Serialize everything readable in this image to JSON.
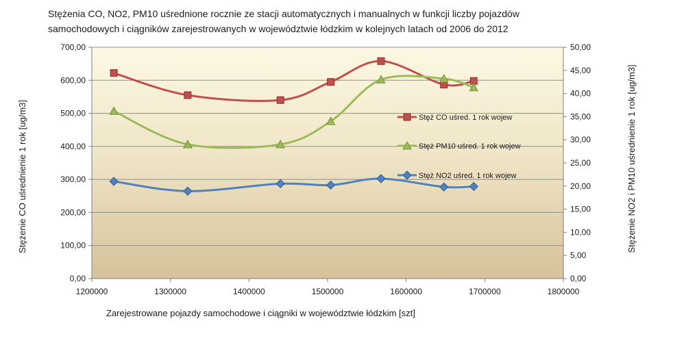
{
  "chart_data": {
    "type": "line",
    "title_lines": [
      "Stężenia  CO, NO2, PM10 uśrednione rocznie ze stacji automatycznych i manualnych w funkcji  liczby pojazdów",
      "samochodowych  i  ciągników  zarejestrowanych w województwie  łódzkim  w kolejnych latach od 2006 do 2012"
    ],
    "xlabel": "Zarejestrowane pojazdy  samochodowe  i  ciągniki  w województwie  łódzkim  [szt]",
    "ylabel_left": "Stężenie CO uśrednienie 1 rok [ug/m3]",
    "ylabel_right": "Stężenie NO2 i PM10 uśrednienie 1 rok [ug/m3]",
    "xlim": [
      1200000,
      1800000
    ],
    "x_ticks": [
      "1200000",
      "1300000",
      "1400000",
      "1500000",
      "1600000",
      "1700000",
      "1800000"
    ],
    "ylim_left": [
      0,
      700
    ],
    "y_ticks_left": [
      "0,00",
      "100,00",
      "200,00",
      "300,00",
      "400,00",
      "500,00",
      "600,00",
      "700,00"
    ],
    "ylim_right": [
      0,
      50
    ],
    "y_ticks_right": [
      "0,00",
      "5,00",
      "10,00",
      "15,00",
      "20,00",
      "25,00",
      "30,00",
      "35,00",
      "40,00",
      "45,00",
      "50,00"
    ],
    "legend_position": "right",
    "series": [
      {
        "name": "Stęż CO uśred. 1 rok wojew",
        "axis": "left",
        "color": "#c0504d",
        "marker": "square",
        "x": [
          1228000,
          1322000,
          1440000,
          1504000,
          1568000,
          1648000,
          1686000
        ],
        "y": [
          622,
          555,
          540,
          595,
          658,
          587,
          598
        ]
      },
      {
        "name": "Stęż PM10 uśred. 1 rok  wojew",
        "axis": "right",
        "color": "#9bbb59",
        "marker": "triangle",
        "x": [
          1228000,
          1322000,
          1440000,
          1504000,
          1568000,
          1648000,
          1686000
        ],
        "y": [
          36.2,
          29.0,
          29.0,
          34.0,
          43.0,
          43.2,
          41.3
        ]
      },
      {
        "name": "Stęż NO2 uśred. 1 rok  wojew",
        "axis": "right",
        "color": "#4f81bd",
        "marker": "diamond",
        "x": [
          1228000,
          1322000,
          1440000,
          1504000,
          1568000,
          1648000,
          1686000
        ],
        "y": [
          21.0,
          18.9,
          20.5,
          20.2,
          21.6,
          19.8,
          19.9
        ]
      }
    ]
  }
}
